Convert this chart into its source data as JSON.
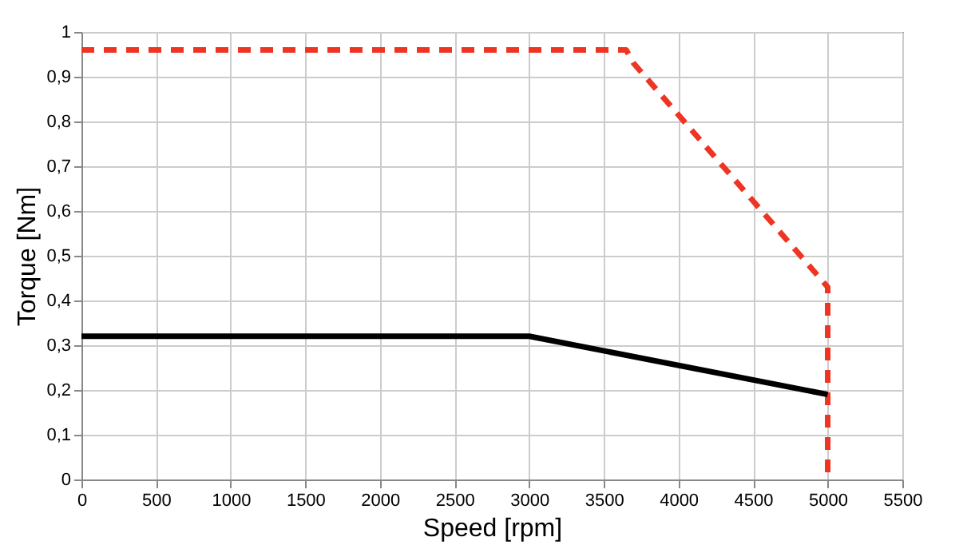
{
  "chart_data": {
    "type": "line",
    "xlabel": "Speed [rpm]",
    "ylabel": "Torque [Nm]",
    "series": [
      {
        "color": "#ee3524",
        "line_style": "dashed",
        "x": [
          0,
          3650,
          3700,
          5000,
          5000
        ],
        "values": [
          0.96,
          0.96,
          0.93,
          0.43,
          0
        ]
      },
      {
        "color": "#000000",
        "line_style": "solid",
        "x": [
          0,
          3000,
          5000
        ],
        "values": [
          0.32,
          0.32,
          0.19
        ]
      }
    ],
    "xlim": [
      0,
      5500
    ],
    "xticks": [
      0,
      500,
      1000,
      1500,
      2000,
      2500,
      3000,
      3500,
      4000,
      4500,
      5000,
      5500
    ],
    "ylim": [
      0,
      1
    ],
    "yticks": [
      0,
      {
        "value": 0.1,
        "label": "0,1"
      },
      {
        "value": 0.2,
        "label": "0,2"
      },
      {
        "value": 0.3,
        "label": "0,3"
      },
      {
        "value": 0.4,
        "label": "0,4"
      },
      {
        "value": 0.5,
        "label": "0,5"
      },
      {
        "value": 0.6,
        "label": "0,6"
      },
      {
        "value": 0.7,
        "label": "0,7"
      },
      {
        "value": 0.8,
        "label": "0,8"
      },
      {
        "value": 0.9,
        "label": "0,9"
      },
      1
    ],
    "grid": true,
    "legend": false,
    "marker": "none"
  }
}
